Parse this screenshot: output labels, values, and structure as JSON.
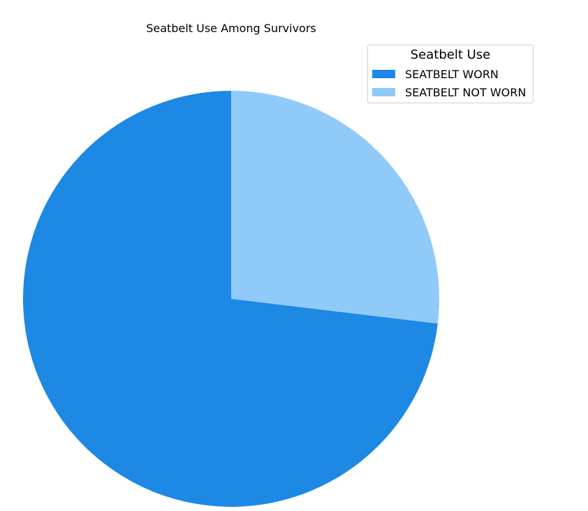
{
  "chart_data": {
    "type": "pie",
    "title": "Seatbelt Use Among Survivors",
    "legend_title": "Seatbelt Use",
    "legend_position": "top-right",
    "start_angle": "12 o'clock, counterclockwise",
    "categories": [
      "SEATBELT WORN",
      "SEATBELT NOT WORN"
    ],
    "values": [
      73.1,
      26.9
    ],
    "colors": [
      "#1e88e5",
      "#90caf9"
    ]
  }
}
